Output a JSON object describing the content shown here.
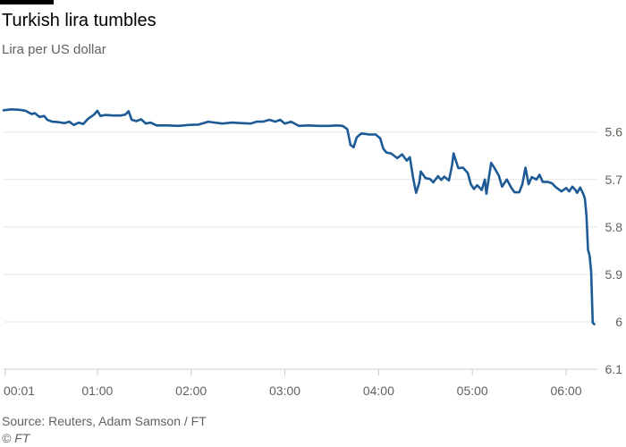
{
  "header": {
    "title": "Turkish lira tumbles",
    "subtitle": "Lira per US dollar"
  },
  "footer": {
    "source": "Source: Reuters, Adam Samson / FT",
    "copyright": "© FT"
  },
  "colors": {
    "line": "#1d5a96",
    "grid": "#e6e6e6",
    "axis": "#cccccc",
    "text": "#66605c",
    "bar": "#000000"
  },
  "chart_data": {
    "type": "line",
    "title": "Turkish lira tumbles",
    "subtitle": "Lira per US dollar",
    "xlabel": "",
    "ylabel": "",
    "ylim": [
      6.1,
      5.51
    ],
    "y_axis_inverted": true,
    "y_axis_position": "right",
    "yticks": [
      "5.6",
      "5.7",
      "5.8",
      "5.9",
      "6",
      "6.1"
    ],
    "yticks_values": [
      5.6,
      5.7,
      5.8,
      5.9,
      6.0,
      6.1
    ],
    "x_unit": "minutes after 00:00",
    "xlim": [
      0,
      380
    ],
    "xticks": [
      "00:01",
      "01:00",
      "02:00",
      "03:00",
      "04:00",
      "05:00",
      "06:00"
    ],
    "xticks_values": [
      1,
      60,
      120,
      180,
      240,
      300,
      360
    ],
    "grid": true,
    "series": [
      {
        "values": [
          [
            0,
            5.554
          ],
          [
            5,
            5.552
          ],
          [
            10,
            5.553
          ],
          [
            14,
            5.555
          ],
          [
            18,
            5.562
          ],
          [
            20,
            5.56
          ],
          [
            23,
            5.568
          ],
          [
            26,
            5.566
          ],
          [
            28,
            5.574
          ],
          [
            31,
            5.578
          ],
          [
            35,
            5.579
          ],
          [
            39,
            5.581
          ],
          [
            42,
            5.578
          ],
          [
            45,
            5.585
          ],
          [
            48,
            5.58
          ],
          [
            51,
            5.583
          ],
          [
            54,
            5.572
          ],
          [
            58,
            5.563
          ],
          [
            60,
            5.555
          ],
          [
            62,
            5.566
          ],
          [
            65,
            5.564
          ],
          [
            70,
            5.565
          ],
          [
            75,
            5.565
          ],
          [
            78,
            5.563
          ],
          [
            80,
            5.556
          ],
          [
            82,
            5.574
          ],
          [
            85,
            5.577
          ],
          [
            88,
            5.573
          ],
          [
            91,
            5.582
          ],
          [
            94,
            5.58
          ],
          [
            98,
            5.586
          ],
          [
            105,
            5.586
          ],
          [
            112,
            5.587
          ],
          [
            118,
            5.585
          ],
          [
            125,
            5.584
          ],
          [
            131,
            5.578
          ],
          [
            135,
            5.58
          ],
          [
            140,
            5.582
          ],
          [
            146,
            5.58
          ],
          [
            152,
            5.581
          ],
          [
            158,
            5.582
          ],
          [
            162,
            5.578
          ],
          [
            166,
            5.578
          ],
          [
            170,
            5.574
          ],
          [
            174,
            5.578
          ],
          [
            177,
            5.574
          ],
          [
            180,
            5.582
          ],
          [
            184,
            5.578
          ],
          [
            189,
            5.587
          ],
          [
            195,
            5.586
          ],
          [
            201,
            5.587
          ],
          [
            208,
            5.587
          ],
          [
            213,
            5.586
          ],
          [
            217,
            5.587
          ],
          [
            220,
            5.594
          ],
          [
            222,
            5.627
          ],
          [
            224,
            5.632
          ],
          [
            226,
            5.611
          ],
          [
            229,
            5.603
          ],
          [
            234,
            5.605
          ],
          [
            238,
            5.605
          ],
          [
            241,
            5.613
          ],
          [
            243,
            5.635
          ],
          [
            245,
            5.643
          ],
          [
            248,
            5.645
          ],
          [
            252,
            5.655
          ],
          [
            255,
            5.647
          ],
          [
            258,
            5.66
          ],
          [
            260,
            5.653
          ],
          [
            262,
            5.695
          ],
          [
            264,
            5.728
          ],
          [
            266,
            5.707
          ],
          [
            267,
            5.683
          ],
          [
            270,
            5.697
          ],
          [
            273,
            5.699
          ],
          [
            275,
            5.706
          ],
          [
            278,
            5.693
          ],
          [
            280,
            5.701
          ],
          [
            282,
            5.694
          ],
          [
            285,
            5.702
          ],
          [
            287,
            5.67
          ],
          [
            288,
            5.645
          ],
          [
            291,
            5.676
          ],
          [
            294,
            5.675
          ],
          [
            297,
            5.686
          ],
          [
            299,
            5.71
          ],
          [
            301,
            5.72
          ],
          [
            303,
            5.712
          ],
          [
            306,
            5.722
          ],
          [
            308,
            5.7
          ],
          [
            309,
            5.73
          ],
          [
            310,
            5.708
          ],
          [
            312,
            5.665
          ],
          [
            314,
            5.675
          ],
          [
            317,
            5.692
          ],
          [
            319,
            5.715
          ],
          [
            322,
            5.7
          ],
          [
            325,
            5.718
          ],
          [
            327,
            5.727
          ],
          [
            330,
            5.727
          ],
          [
            332,
            5.71
          ],
          [
            334,
            5.675
          ],
          [
            336,
            5.71
          ],
          [
            338,
            5.695
          ],
          [
            341,
            5.7
          ],
          [
            343,
            5.69
          ],
          [
            345,
            5.705
          ],
          [
            348,
            5.705
          ],
          [
            351,
            5.708
          ],
          [
            353,
            5.715
          ],
          [
            355,
            5.72
          ],
          [
            357,
            5.725
          ],
          [
            360,
            5.718
          ],
          [
            362,
            5.725
          ],
          [
            364,
            5.715
          ],
          [
            366,
            5.722
          ],
          [
            367,
            5.728
          ],
          [
            369,
            5.717
          ],
          [
            371,
            5.731
          ],
          [
            372,
            5.74
          ],
          [
            373,
            5.776
          ],
          [
            374,
            5.848
          ],
          [
            375,
            5.861
          ],
          [
            376,
            5.894
          ],
          [
            377,
            6.002
          ],
          [
            378,
            6.005
          ]
        ]
      }
    ]
  }
}
